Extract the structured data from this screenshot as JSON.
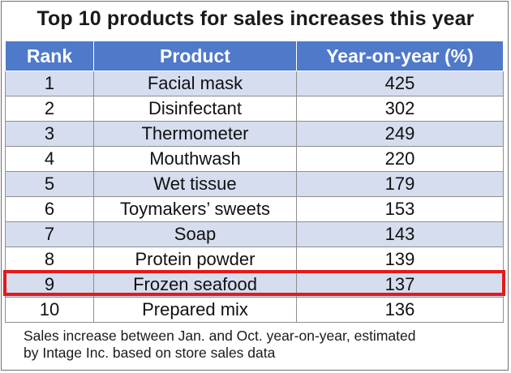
{
  "title": "Top 10 products for sales increases this year",
  "table": {
    "headers": [
      "Rank",
      "Product",
      "Year-on-year (%)"
    ],
    "rows": [
      {
        "rank": "1",
        "product": "Facial mask",
        "yoy": "425"
      },
      {
        "rank": "2",
        "product": "Disinfectant",
        "yoy": "302"
      },
      {
        "rank": "3",
        "product": "Thermometer",
        "yoy": "249"
      },
      {
        "rank": "4",
        "product": "Mouthwash",
        "yoy": "220"
      },
      {
        "rank": "5",
        "product": "Wet tissue",
        "yoy": "179"
      },
      {
        "rank": "6",
        "product": "Toymakers’ sweets",
        "yoy": "153"
      },
      {
        "rank": "7",
        "product": "Soap",
        "yoy": "143"
      },
      {
        "rank": "8",
        "product": "Protein powder",
        "yoy": "139"
      },
      {
        "rank": "9",
        "product": "Frozen seafood",
        "yoy": "137"
      },
      {
        "rank": "10",
        "product": "Prepared mix",
        "yoy": "136"
      }
    ],
    "highlighted_rank": "9",
    "header_color": "#4f79c9",
    "stripe_color": "#d5ddef",
    "highlight_color": "#e31a1a"
  },
  "footnote": {
    "line1": "Sales increase between Jan. and Oct. year-on-year, estimated",
    "line2": "by Intage Inc. based on store sales data"
  }
}
